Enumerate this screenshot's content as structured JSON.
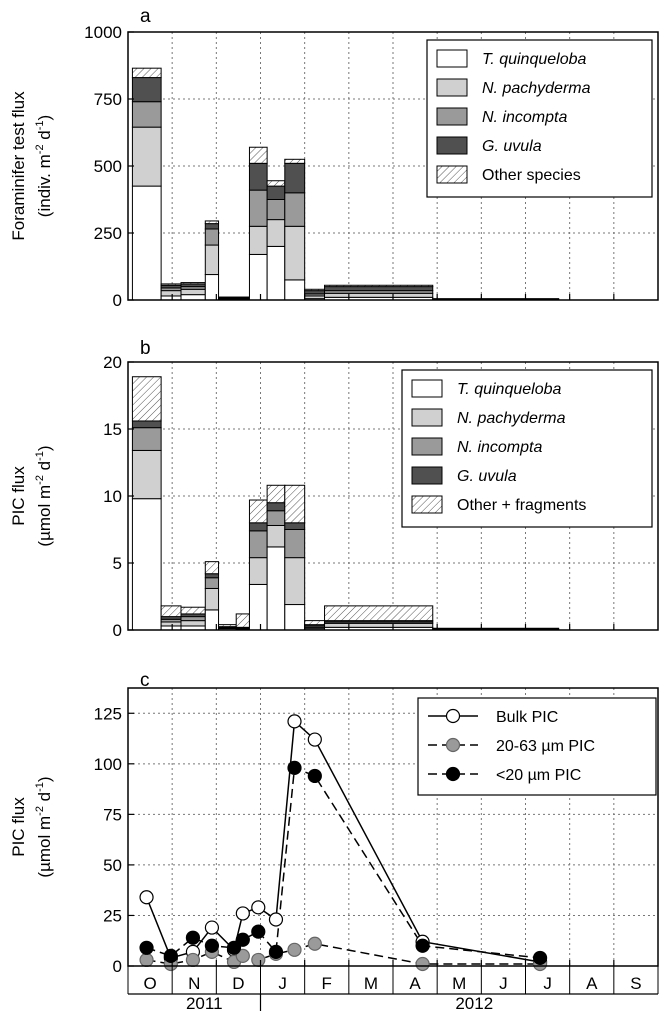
{
  "colors": {
    "t_quinqueloba": "#ffffff",
    "n_pachyderma": "#d0d0d0",
    "n_incompta": "#9a9a9a",
    "g_uvula": "#505050",
    "other": "hatch",
    "bulk": "#ffffff",
    "coarse": "#9a9a9a",
    "fine": "#000000"
  },
  "chart_data": [
    {
      "panel": "a",
      "type": "bar",
      "stacked": true,
      "ylabel": "Foraminifer test flux",
      "ylabel_unit": [
        "(indiv. m",
        "-2",
        " d",
        "-1",
        ")"
      ],
      "ylim": [
        0,
        1000
      ],
      "yticks": [
        0,
        250,
        500,
        750,
        1000
      ],
      "ytick_labels": [
        "0",
        "250",
        "500",
        "750",
        "1000"
      ],
      "grid": true,
      "legend_position": "top-right",
      "legend": [
        "T. quinqueloba",
        "N. pachyderma",
        "N. incompta",
        "G. uvula",
        "Other species"
      ],
      "x_months": [
        "O",
        "N",
        "D",
        "J",
        "F",
        "M",
        "A",
        "M",
        "J",
        "J",
        "A",
        "S"
      ],
      "intervals": [
        {
          "start": 0.1,
          "end": 0.75,
          "values": [
            425,
            220,
            95,
            90,
            35
          ]
        },
        {
          "start": 0.75,
          "end": 1.2,
          "values": [
            15,
            20,
            10,
            10,
            5
          ]
        },
        {
          "start": 1.2,
          "end": 1.75,
          "values": [
            20,
            20,
            10,
            10,
            5
          ]
        },
        {
          "start": 1.75,
          "end": 2.05,
          "values": [
            95,
            110,
            60,
            20,
            10
          ]
        },
        {
          "start": 2.05,
          "end": 2.75,
          "values": [
            4,
            2,
            2,
            2,
            1
          ]
        },
        {
          "start": 2.75,
          "end": 3.15,
          "values": [
            170,
            105,
            135,
            100,
            60
          ]
        },
        {
          "start": 3.15,
          "end": 3.55,
          "values": [
            200,
            100,
            75,
            50,
            20
          ]
        },
        {
          "start": 3.55,
          "end": 4.0,
          "values": [
            75,
            200,
            125,
            110,
            15
          ]
        },
        {
          "start": 4.0,
          "end": 4.45,
          "values": [
            5,
            10,
            8,
            12,
            5
          ]
        },
        {
          "start": 4.45,
          "end": 6.9,
          "values": [
            10,
            15,
            10,
            15,
            5
          ]
        },
        {
          "start": 6.9,
          "end": 9.75,
          "values": [
            1,
            1,
            1,
            1,
            1
          ]
        }
      ]
    },
    {
      "panel": "b",
      "type": "bar",
      "stacked": true,
      "ylabel": "PIC flux",
      "ylabel_unit": [
        "(µmol m",
        "-2",
        " d",
        "-1",
        ")"
      ],
      "ylim": [
        0,
        20
      ],
      "yticks": [
        0,
        5,
        10,
        15,
        20
      ],
      "ytick_labels": [
        "0",
        "5",
        "10",
        "15",
        "20"
      ],
      "grid": true,
      "legend_position": "top-right",
      "legend": [
        "T. quinqueloba",
        "N. pachyderma",
        "N. incompta",
        "G. uvula",
        "Other + fragments"
      ],
      "x_months": [
        "O",
        "N",
        "D",
        "J",
        "F",
        "M",
        "A",
        "M",
        "J",
        "J",
        "A",
        "S"
      ],
      "intervals": [
        {
          "start": 0.1,
          "end": 0.75,
          "values": [
            9.8,
            3.6,
            1.7,
            0.5,
            3.3
          ]
        },
        {
          "start": 0.75,
          "end": 1.2,
          "values": [
            0.3,
            0.3,
            0.2,
            0.2,
            0.8
          ]
        },
        {
          "start": 1.2,
          "end": 1.75,
          "values": [
            0.3,
            0.4,
            0.3,
            0.2,
            0.5
          ]
        },
        {
          "start": 1.75,
          "end": 2.05,
          "values": [
            1.5,
            1.6,
            0.8,
            0.3,
            0.9
          ]
        },
        {
          "start": 2.05,
          "end": 2.45,
          "values": [
            0.1,
            0.05,
            0.05,
            0.05,
            0.15
          ]
        },
        {
          "start": 2.45,
          "end": 2.75,
          "values": [
            0.05,
            0.05,
            0.05,
            0.05,
            1.0
          ]
        },
        {
          "start": 2.75,
          "end": 3.15,
          "values": [
            3.4,
            2.0,
            2.0,
            0.6,
            1.7
          ]
        },
        {
          "start": 3.15,
          "end": 3.55,
          "values": [
            6.2,
            1.6,
            1.1,
            0.6,
            1.3
          ]
        },
        {
          "start": 3.55,
          "end": 4.0,
          "values": [
            1.9,
            3.5,
            2.1,
            0.5,
            2.8
          ]
        },
        {
          "start": 4.0,
          "end": 4.45,
          "values": [
            0.1,
            0.1,
            0.1,
            0.1,
            0.3
          ]
        },
        {
          "start": 4.45,
          "end": 6.9,
          "values": [
            0.2,
            0.3,
            0.1,
            0.1,
            1.1
          ]
        },
        {
          "start": 6.9,
          "end": 9.75,
          "values": [
            0.02,
            0.02,
            0.02,
            0.02,
            0.05
          ]
        }
      ]
    },
    {
      "panel": "c",
      "type": "line",
      "ylabel": "PIC flux",
      "ylabel_unit": [
        "(µmol m",
        "-2",
        " d",
        "-1",
        ")"
      ],
      "ylim": [
        0,
        137.5
      ],
      "yticks": [
        0,
        25,
        50,
        75,
        100,
        125
      ],
      "ytick_labels": [
        "0",
        "25",
        "50",
        "75",
        "100",
        "125"
      ],
      "grid": true,
      "legend_position": "top-right",
      "x_months": [
        "O",
        "N",
        "D",
        "J",
        "F",
        "M",
        "A",
        "M",
        "J",
        "J",
        "A",
        "S"
      ],
      "x_years": [
        "2011",
        "2012"
      ],
      "series": [
        {
          "name": "Bulk PIC",
          "style": "solid",
          "marker": "open",
          "x": [
            0.42,
            0.97,
            1.47,
            1.9,
            2.4,
            2.6,
            2.95,
            3.35,
            3.77,
            4.23,
            6.67,
            9.33
          ],
          "y": [
            34,
            4,
            7,
            19,
            8,
            26,
            29,
            23,
            121,
            112,
            12,
            2
          ]
        },
        {
          "name": "20-63 µm PIC",
          "style": "dashed",
          "marker": "gray",
          "x": [
            0.42,
            0.97,
            1.47,
            1.9,
            2.4,
            2.6,
            2.95,
            3.35,
            3.77,
            4.23,
            6.67,
            9.33
          ],
          "y": [
            3,
            1,
            3,
            7,
            2,
            5,
            3,
            6,
            8,
            11,
            1,
            1
          ]
        },
        {
          "name": "<20 µm PIC",
          "style": "dashed",
          "marker": "black",
          "x": [
            0.42,
            0.97,
            1.47,
            1.9,
            2.4,
            2.6,
            2.95,
            3.35,
            3.77,
            4.23,
            6.67,
            9.33
          ],
          "y": [
            9,
            5,
            14,
            10,
            9,
            13,
            17,
            7,
            98,
            94,
            10,
            4
          ]
        }
      ]
    }
  ],
  "panel_labels": [
    "a",
    "b",
    "c"
  ]
}
